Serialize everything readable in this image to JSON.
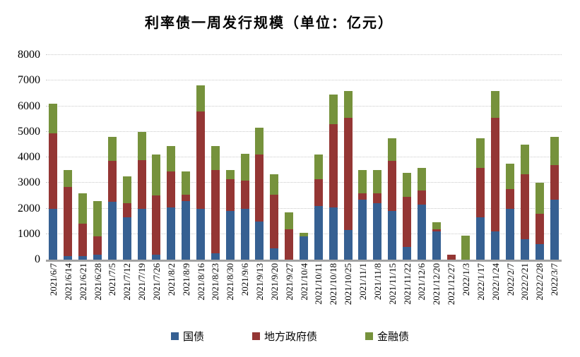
{
  "title": "利率债一周发行规模（单位：亿元）",
  "colors": {
    "treasury": "#366092",
    "local-gov": "#943634",
    "financial": "#76923C",
    "axis_line": "#a3a3a3",
    "gridline": "#c9c9c9"
  },
  "chart_data": {
    "type": "bar",
    "stacked": true,
    "title": "利率债一周发行规模（单位：亿元）",
    "xlabel": "",
    "ylabel": "",
    "ylim": [
      0,
      8000
    ],
    "yticks": [
      0,
      1000,
      2000,
      3000,
      4000,
      5000,
      6000,
      7000,
      8000
    ],
    "grid": true,
    "legend_position": "bottom",
    "categories": [
      "2021/6/7",
      "2021/6/14",
      "2021/6/21",
      "2021/6/28",
      "2021/7/5",
      "2021/7/12",
      "2021/7/19",
      "2021/7/26",
      "2021/8/2",
      "2021/8/9",
      "2021/8/16",
      "2021/8/23",
      "2021/8/30",
      "2021/9/6",
      "2021/9/13",
      "2021/9/20",
      "2021/9/27",
      "2021/10/4",
      "2021/10/11",
      "2021/10/18",
      "2021/10/25",
      "2021/11/1",
      "2021/11/8",
      "2021/11/15",
      "2021/11/22",
      "2021/12/6",
      "2021/12/20",
      "2021/12/27",
      "2022/1/3",
      "2022/1/17",
      "2022/1/24",
      "2022/2/7",
      "2022/2/21",
      "2022/2/28",
      "2022/3/7"
    ],
    "series": [
      {
        "name": "国债",
        "key": "treasury",
        "values": [
          2000,
          150,
          150,
          200,
          2250,
          1650,
          2000,
          200,
          2050,
          2300,
          2000,
          250,
          1900,
          2000,
          1500,
          450,
          0,
          900,
          2100,
          2050,
          1150,
          2350,
          2200,
          1900,
          500,
          2150,
          1100,
          0,
          0,
          1650,
          1100,
          2000,
          800,
          600,
          2350
        ]
      },
      {
        "name": "地方政府债",
        "key": "local-gov",
        "values": [
          2950,
          2700,
          1250,
          700,
          1600,
          550,
          1900,
          2300,
          1400,
          250,
          3800,
          3250,
          1250,
          1100,
          2600,
          2100,
          1200,
          0,
          1050,
          3250,
          4400,
          250,
          400,
          1950,
          1950,
          550,
          100,
          200,
          0,
          1950,
          4450,
          750,
          2550,
          1200,
          1350
        ]
      },
      {
        "name": "金融债",
        "key": "financial",
        "values": [
          1150,
          650,
          1200,
          1400,
          950,
          1050,
          1100,
          1600,
          1000,
          900,
          1000,
          950,
          350,
          1050,
          1050,
          800,
          650,
          150,
          950,
          1150,
          1050,
          900,
          900,
          900,
          950,
          900,
          250,
          0,
          950,
          1150,
          1050,
          1000,
          1150,
          1200,
          1100
        ]
      }
    ]
  }
}
